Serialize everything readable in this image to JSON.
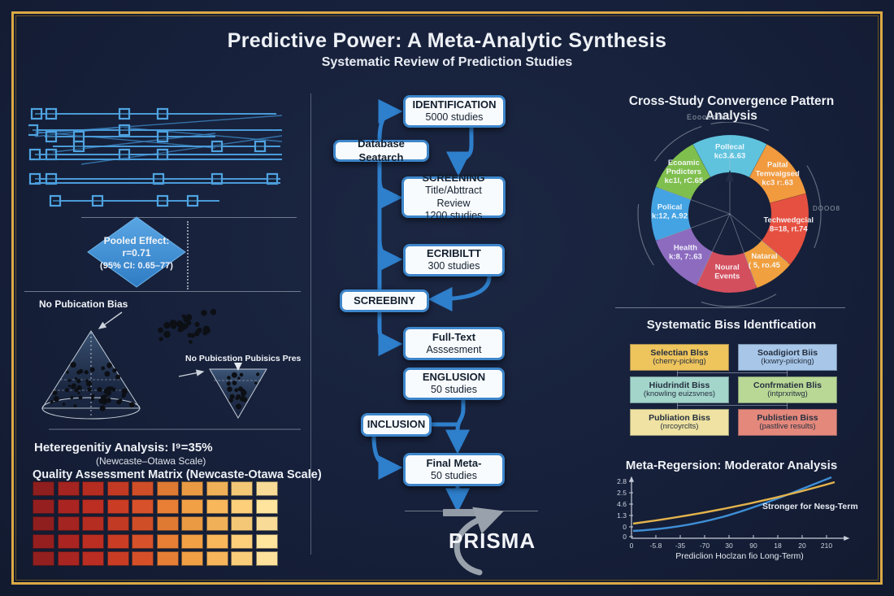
{
  "header": {
    "title": "Predictive Power: A Meta-Analytic Synthesis",
    "subtitle": "Systematic Review of Prediction Studies"
  },
  "left": {
    "forest": {
      "rows": [
        {
          "y": 28,
          "line": [
            8,
            305
          ],
          "squares": [
            10,
            28,
            118,
            165
          ]
        },
        {
          "y": 48,
          "line": [
            5,
            312
          ],
          "squares": [
            5,
            118
          ]
        },
        {
          "y": 56,
          "line": [
            20,
            230
          ],
          "squares": [
            28,
            62,
            165
          ]
        },
        {
          "y": 68,
          "line": [
            30,
            310
          ],
          "squares": [
            62,
            232,
            285
          ]
        },
        {
          "y": 78,
          "line": [
            8,
            312
          ],
          "squares": [
            8,
            28,
            118,
            165
          ]
        },
        {
          "y": 84,
          "line": [
            8,
            312
          ],
          "squares": []
        },
        {
          "y": 108,
          "line": [
            8,
            310
          ],
          "squares": [
            8,
            28,
            160,
            232,
            300
          ]
        },
        {
          "y": 113,
          "line": [
            8,
            310
          ],
          "squares": []
        },
        {
          "y": 135,
          "line": [
            30,
            235
          ],
          "squares": [
            33,
            85,
            165,
            202
          ]
        }
      ],
      "diagonals": [
        [
          8,
          52,
          312,
          30
        ],
        [
          8,
          50,
          230,
          70
        ],
        [
          65,
          90,
          312,
          55
        ],
        [
          30,
          75,
          230,
          52
        ],
        [
          118,
          45,
          312,
          62
        ],
        [
          8,
          56,
          118,
          44
        ]
      ]
    },
    "pooled": {
      "lines": [
        "Pooled Effect:",
        "r=0.71",
        "(95% CI: 0.65–77)"
      ]
    },
    "funnel": {
      "left_label": "No Pubication Bias",
      "right_label": "No Pubicstion Pubisics Present"
    },
    "heterogeneity": {
      "line1": "Heteregenitiy Analysis: I⁹=35%",
      "line2": "(Newcaste–Otawa Scale)"
    },
    "quality": {
      "title": "Quality Assessment Matrix (Newcaste-Otawa Scale)",
      "rows": 5,
      "col_colors": [
        "#8f1e1e",
        "#a32420",
        "#b52c21",
        "#c23a23",
        "#cf4e28",
        "#df7a33",
        "#e99a43",
        "#efb058",
        "#f3c776",
        "#f7db97"
      ]
    }
  },
  "flow": {
    "boxes": [
      {
        "title": "IDENTIFICATION",
        "bold": true,
        "lines": [
          "5000 studies"
        ]
      },
      {
        "title": "SCREENING",
        "bold": true,
        "lines": [
          "Title/Abttract Review",
          "1200 studies"
        ]
      },
      {
        "title": "ECRIBILTT",
        "bold": true,
        "lines": [
          "300 studies"
        ]
      },
      {
        "title": "Full-Text",
        "bold": false,
        "lines": [
          "Asssesment"
        ]
      },
      {
        "title": "ENGLUSION",
        "bold": true,
        "lines": [
          "50 studies"
        ]
      },
      {
        "title": "Final Meta-",
        "bold": false,
        "lines": [
          "50 studies"
        ]
      }
    ],
    "side_boxes": [
      {
        "label": "Database Seatarch",
        "bold": false
      },
      {
        "label": "SCREEBINY",
        "bold": true
      },
      {
        "label": "INCLUSION",
        "bold": true
      }
    ],
    "prisma_label": "PRISMA"
  },
  "right": {
    "donut_title": "Cross-Study Convergence Pattern Analysis",
    "donut_top_note": "Eoooooce",
    "donut_side_note": "DOOO8",
    "segments": [
      {
        "label": [
          "Pollecal",
          "kc3.&.63"
        ],
        "color": "#5fc3de",
        "from": 332,
        "to": 28
      },
      {
        "label": [
          "Paital",
          "Temvaigsed",
          "kc3 r:.63"
        ],
        "color": "#f19a3e",
        "from": 28,
        "to": 75
      },
      {
        "label": [
          "Techwedgcial",
          "8=18, rt.74"
        ],
        "color": "#e65040",
        "from": 75,
        "to": 130
      },
      {
        "label": [
          "Nataral",
          "( 5, ro.45"
        ],
        "color": "#f0a03e",
        "from": 130,
        "to": 160
      },
      {
        "label": [
          "Noural",
          "Events"
        ],
        "color": "#d44f5e",
        "from": 160,
        "to": 205
      },
      {
        "label": [
          "Health",
          "k:8, 7:.63"
        ],
        "color": "#8d6cc0",
        "from": 205,
        "to": 250
      },
      {
        "label": [
          "Polical",
          "k:12, A.92"
        ],
        "color": "#44a3e3",
        "from": 250,
        "to": 290
      },
      {
        "label": [
          "Ecoamic",
          "Pndicters",
          "kc1l, rC.65"
        ],
        "color": "#7fbf4d",
        "from": 290,
        "to": 332
      }
    ],
    "bias_title": "Systematic Biss Identfication",
    "bias_boxes": [
      {
        "title": "Selectian Blss",
        "sub": "(cherry-picking)",
        "color": "#eec45c"
      },
      {
        "title": "Soadigiort Biis",
        "sub": "(kxwry-piicking)",
        "color": "#a7c6e8"
      },
      {
        "title": "Hiudrindit Biss",
        "sub": "(knowling euizsvnes)",
        "color": "#a3d5cb"
      },
      {
        "title": "Confrmatien Blis",
        "sub": "(intprxritwg)",
        "color": "#b9d896"
      },
      {
        "title": "Publiation Biss",
        "sub": "(nrcoyrclts)",
        "color": "#efe2a2"
      },
      {
        "title": "Publistien Biss",
        "sub": "(pastlive results)",
        "color": "#e4887c"
      }
    ],
    "regression": {
      "title": "Meta-Regersion: Moderator Analysis",
      "annotation": "Stronger for Nesg-Term",
      "xlabel": "Prediclion Hoclzan fio Long-Term)",
      "y_ticks": [
        "2.8",
        "2.5",
        "4.6",
        "1.3",
        "0",
        "0"
      ],
      "x_ticks": [
        "0",
        "-5.8",
        "-35",
        "-70",
        "30",
        "90",
        "18",
        "20",
        "210"
      ]
    }
  },
  "chart_data": [
    {
      "type": "pie",
      "title": "Cross-Study Convergence Pattern Analysis",
      "labels": [
        "Pollecal kc3.&.63",
        "Paital Temvaigsed kc3 r:.63",
        "Techwedgcial 8=18, rt.74",
        "Nataral ( 5, ro.45",
        "Noural Events",
        "Health k:8, 7:.63",
        "Polical k:12, A.92",
        "Ecoamic Pndicters kc1l, rC.65"
      ],
      "values": [
        56,
        47,
        55,
        30,
        45,
        45,
        40,
        42
      ],
      "unit": "degrees of arc (estimated, donut chart)",
      "legend_position": "labels on slices"
    },
    {
      "type": "line",
      "title": "Meta-Regersion: Moderator Analysis",
      "xlabel": "Prediclion Hoclzan fio Long-Term)",
      "x_tick_labels": [
        "0",
        "-5.8",
        "-35",
        "-70",
        "30",
        "90",
        "18",
        "20",
        "210"
      ],
      "y_tick_labels": [
        "2.8",
        "2.5",
        "4.6",
        "1.3",
        "0",
        "0"
      ],
      "series": [
        {
          "name": "blue curve",
          "color": "#3f8fd6",
          "values": [
            0.15,
            0.35,
            0.7,
            1.2,
            1.9,
            2.8
          ]
        },
        {
          "name": "gold curve",
          "color": "#e3b34c",
          "values": [
            0.45,
            0.85,
            1.3,
            1.75,
            2.2,
            2.6
          ]
        }
      ],
      "annotation": "Stronger for Nesg-Term",
      "grid": false
    },
    {
      "type": "heatmap",
      "title": "Quality Assessment Matrix (Newcaste-Otawa Scale)",
      "rows": 5,
      "cols": 10,
      "palette": "dark red (left) to cream yellow (right)"
    },
    {
      "type": "scatter",
      "title": "Funnel plots (publication bias)",
      "annotations": [
        "No Pubication Bias",
        "No Pubicstion Pubisics Present"
      ],
      "pooled_effect": "Pooled Effect: r=0.71 (95% CI: 0.65–77)",
      "heterogeneity": "Heteregenitiy Analysis: I⁹=35% (Newcaste–Otawa Scale)"
    }
  ]
}
